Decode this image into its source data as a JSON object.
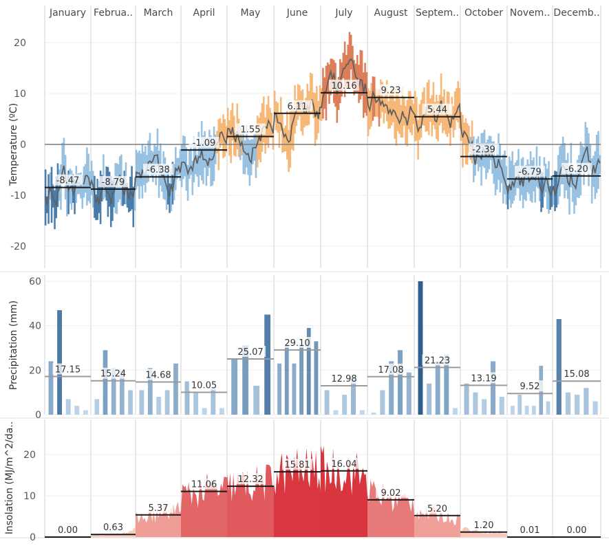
{
  "months": [
    "January",
    "Februa..",
    "March",
    "April",
    "May",
    "June",
    "July",
    "August",
    "Septem..",
    "October",
    "Novem..",
    "Decemb.."
  ],
  "chart_data": [
    {
      "type": "line",
      "ylabel": "Temperature (ºC)",
      "ylim": [
        -24,
        24
      ],
      "yticks": [
        20,
        10,
        0,
        -10,
        -20
      ],
      "monthly_average": [
        -8.47,
        -8.79,
        -6.38,
        -1.09,
        1.55,
        6.11,
        10.16,
        9.23,
        5.44,
        -2.39,
        -6.79,
        -6.2
      ],
      "monthly_average_labels": [
        "-8.47",
        "-8.79",
        "-6.38",
        "-1.09",
        "1.55",
        "6.11",
        "10.16",
        "9.23",
        "5.44",
        "-2.39",
        "-6.79",
        "-6.20"
      ],
      "series_colors": {
        "cold": "#8fbcdf",
        "cold_dark": "#3a6fa1",
        "warm": "#f6b26b",
        "warm_dark": "#d9734a",
        "mean_line": "#5f5f5f",
        "zero_line": "#7a7a7a"
      }
    },
    {
      "type": "bar",
      "ylabel": "Precipitation (mm)",
      "ylim": [
        0,
        62
      ],
      "yticks": [
        60,
        40,
        20,
        0
      ],
      "monthly_bars": [
        [
          24,
          47,
          7,
          4,
          2
        ],
        [
          7,
          29,
          21,
          20,
          11
        ],
        [
          11,
          21,
          8,
          11,
          23
        ],
        [
          15,
          10,
          3,
          12,
          3
        ],
        [
          25,
          31,
          13,
          45
        ],
        [
          23,
          31,
          23,
          31,
          39,
          33
        ],
        [
          11,
          2,
          9,
          17,
          2
        ],
        [
          1,
          11,
          24,
          29,
          19
        ],
        [
          60,
          14,
          24,
          27,
          3
        ],
        [
          14,
          10,
          7,
          24,
          8
        ],
        [
          4,
          9,
          4,
          4,
          22,
          6
        ],
        [
          43,
          10,
          9,
          12,
          6
        ]
      ],
      "monthly_average": [
        17.15,
        15.24,
        14.68,
        10.05,
        25.07,
        29.1,
        12.98,
        17.08,
        21.23,
        13.19,
        9.52,
        15.08
      ],
      "monthly_average_labels": [
        "17.15",
        "15.24",
        "14.68",
        "10.05",
        "25.07",
        "29.10",
        "12.98",
        "17.08",
        "21.23",
        "13.19",
        "9.52",
        "15.08"
      ],
      "series_colors": {
        "low": "#c6dcef",
        "high": "#2d5f8f"
      }
    },
    {
      "type": "area",
      "ylabel": "Insolation (MJ/m^2/da..",
      "ylim": [
        0,
        28
      ],
      "yticks": [
        20,
        10,
        0
      ],
      "monthly_average": [
        0.0,
        0.63,
        5.37,
        11.06,
        12.32,
        15.81,
        16.04,
        9.02,
        5.2,
        1.2,
        0.01,
        0.0
      ],
      "monthly_average_labels": [
        "0.00",
        "0.63",
        "5.37",
        "11.06",
        "12.32",
        "15.81",
        "16.04",
        "9.02",
        "5.20",
        "1.20",
        "0.01",
        "0.00"
      ],
      "series_colors": {
        "low": "#fbd3c4",
        "high": "#d7303a"
      }
    }
  ]
}
